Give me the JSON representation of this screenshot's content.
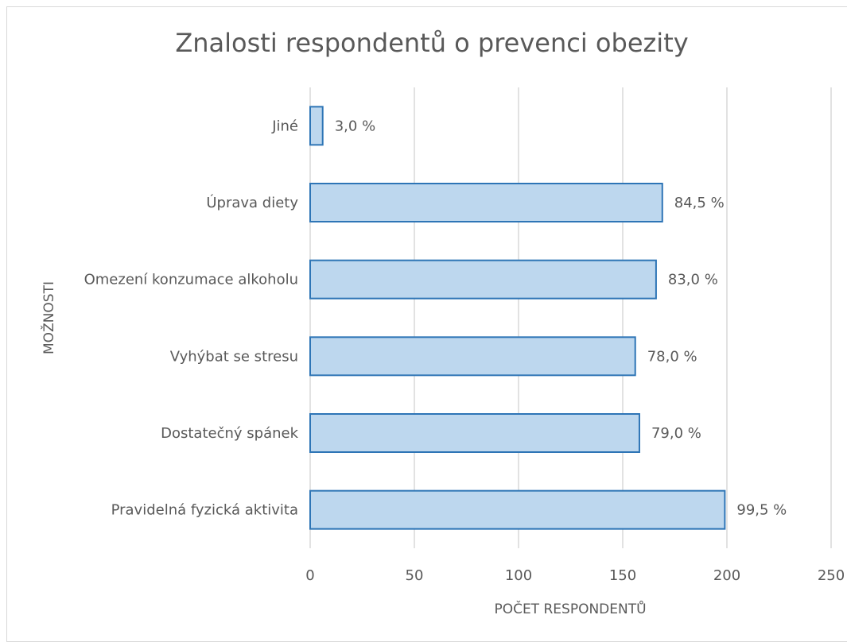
{
  "chart_data": {
    "type": "bar",
    "orientation": "horizontal",
    "title": "Znalosti respondentů o prevenci obezity",
    "xlabel": "POČET RESPONDENTŮ",
    "ylabel": "MOŽNOSTI",
    "xlim": [
      0,
      250
    ],
    "x_ticks": [
      "0",
      "50",
      "100",
      "150",
      "200",
      "250"
    ],
    "grid": true,
    "legend": "none",
    "categories": [
      "Jiné",
      "Úprava diety",
      "Omezení konzumace alkoholu",
      "Vyhýbat se stresu",
      "Dostatečný spánek",
      "Pravidelná fyzická aktivita"
    ],
    "values": [
      6,
      169,
      166,
      156,
      158,
      199
    ],
    "data_labels": [
      "3,0 %",
      "84,5 %",
      "83,0 %",
      "78,0 %",
      "79,0 %",
      "99,5 %"
    ],
    "colors": {
      "bar_fill": "#bdd7ee",
      "bar_stroke": "#2e75b6",
      "gridline": "#d9d9d9",
      "text": "#595959"
    }
  }
}
